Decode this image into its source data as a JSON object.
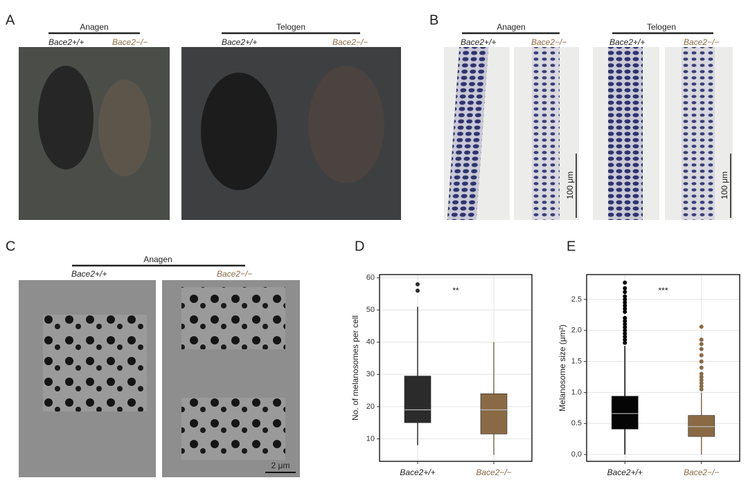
{
  "figure": {
    "panel_A": {
      "letter": "A",
      "groups": [
        {
          "stage": "Anagen",
          "genotypes": [
            "Bace2+/+",
            "Bace2−/−"
          ]
        },
        {
          "stage": "Telogen",
          "genotypes": [
            "Bace2+/+",
            "Bace2−/−"
          ]
        }
      ]
    },
    "panel_B": {
      "letter": "B",
      "scale": "100 μm",
      "groups": [
        {
          "stage": "Anagen",
          "genotypes": [
            "Bace2+/+",
            "Bace2−/−"
          ]
        },
        {
          "stage": "Telogen",
          "genotypes": [
            "Bace2+/+",
            "Bace2−/−"
          ]
        }
      ]
    },
    "panel_C": {
      "letter": "C",
      "stage": "Anagen",
      "genotypes": [
        "Bace2+/+",
        "Bace2−/−"
      ],
      "scale": "2 μm"
    }
  },
  "chart_data": [
    {
      "type": "box",
      "panel": "D",
      "y_label": "No. of melanosomes per cell",
      "annotation": "**",
      "categories": [
        "Bace2+/+",
        "Bace2−/−"
      ],
      "ylim": [
        3,
        61
      ],
      "yticks": [
        10,
        20,
        30,
        40,
        50,
        60
      ],
      "grid": true,
      "series": [
        {
          "name": "Bace2+/+",
          "color": "#2b2b2b",
          "whisker_low": 8,
          "q1": 15,
          "median": 19,
          "q3": 29.5,
          "whisker_high": 51,
          "outliers": [
            56,
            58
          ]
        },
        {
          "name": "Bace2−/−",
          "color": "#8a6a45",
          "whisker_low": 5,
          "q1": 11.5,
          "median": 19,
          "q3": 24,
          "whisker_high": 40,
          "outliers": []
        }
      ]
    },
    {
      "type": "box",
      "panel": "E",
      "y_label": "Melanosome size (μm²)",
      "annotation": "***",
      "categories": [
        "Bace2+/+",
        "Bace2−/−"
      ],
      "ylim": [
        -0.11,
        2.9
      ],
      "yticks": [
        {
          "value": 0,
          "label": "0,0"
        },
        0.5,
        {
          "value": 1,
          "label": "1.0"
        },
        1.5,
        {
          "value": 2,
          "label": "2.0"
        },
        2.5
      ],
      "grid": true,
      "series": [
        {
          "name": "Bace2+/+",
          "color": "#050505",
          "whisker_low": 0,
          "q1": 0.41,
          "median": 0.66,
          "q3": 0.94,
          "whisker_high": 1.75,
          "outliers": [
            1.8,
            1.85,
            1.9,
            1.95,
            2.0,
            2.05,
            2.1,
            2.15,
            2.2,
            2.3,
            2.35,
            2.4,
            2.45,
            2.5,
            2.55,
            2.62,
            2.68,
            2.77
          ]
        },
        {
          "name": "Bace2−/−",
          "color": "#8a6a45",
          "whisker_low": 0,
          "q1": 0.29,
          "median": 0.45,
          "q3": 0.63,
          "whisker_high": 1.0,
          "outliers": [
            1.05,
            1.1,
            1.15,
            1.2,
            1.25,
            1.3,
            1.4,
            1.5,
            1.6,
            1.7,
            1.78,
            1.85,
            2.06
          ]
        }
      ]
    }
  ]
}
